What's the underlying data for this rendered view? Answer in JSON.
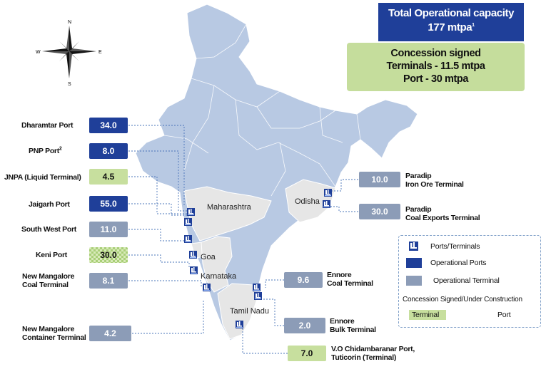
{
  "compass": {
    "n": "N",
    "s": "S",
    "e": "E",
    "w": "W"
  },
  "total_capacity": {
    "line1": "Total Operational capacity",
    "line2": "177 mtpa",
    "superscript": "1"
  },
  "concession": {
    "line1": "Concession signed",
    "line2": "Terminals - 11.5 mtpa",
    "line3": "Port - 30 mtpa"
  },
  "states": {
    "maharashtra": "Maharashtra",
    "odisha": "Odisha",
    "goa": "Goa",
    "karnataka": "Karnataka",
    "tamil_nadu": "Tamil Nadu"
  },
  "ports": {
    "dharamtar": {
      "name": "Dharamtar Port",
      "value": "34.0",
      "category": "Operational Ports"
    },
    "pnp": {
      "name": "PNP Port",
      "superscript": "2",
      "value": "8.0",
      "category": "Operational Ports"
    },
    "jnpa": {
      "name": "JNPA (Liquid Terminal)",
      "value": "4.5",
      "category": "Terminal"
    },
    "jaigarh": {
      "name": "Jaigarh Port",
      "value": "55.0",
      "category": "Operational Ports"
    },
    "south_west": {
      "name": "South West Port",
      "value": "11.0",
      "category": "Operational Terminal"
    },
    "keni": {
      "name": "Keni Port",
      "value": "30.0",
      "category": "Port"
    },
    "nm_coal": {
      "name_line1": "New Mangalore",
      "name_line2": "Coal Terminal",
      "value": "8.1",
      "category": "Operational Terminal"
    },
    "nm_container": {
      "name_line1": "New Mangalore",
      "name_line2": "Container Terminal",
      "value": "4.2",
      "category": "Operational Terminal"
    },
    "paradip_iron": {
      "name_line1": "Paradip",
      "name_line2": "Iron Ore Terminal",
      "value": "10.0",
      "category": "Operational Terminal"
    },
    "paradip_coal": {
      "name_line1": "Paradip",
      "name_line2": "Coal Exports Terminal",
      "value": "30.0",
      "category": "Operational Terminal"
    },
    "ennore_coal": {
      "name_line1": "Ennore",
      "name_line2": "Coal Terminal",
      "value": "9.6",
      "category": "Operational Terminal"
    },
    "ennore_bulk": {
      "name_line1": "Ennore",
      "name_line2": "Bulk Terminal",
      "value": "2.0",
      "category": "Operational Terminal"
    },
    "vo_chidambaranar": {
      "name_line1": "V.O Chidambaranar Port,",
      "name_line2": "Tuticorin (Terminal)",
      "value": "7.0",
      "category": "Terminal"
    }
  },
  "legend": {
    "ports_terminals": "Ports/Terminals",
    "operational_ports": "Operational Ports",
    "operational_terminal": "Operational Terminal",
    "concession_heading": "Concession Signed/Under Construction",
    "terminal": "Terminal",
    "port": "Port"
  },
  "colors": {
    "operational_port": "#1f3f99",
    "operational_terminal": "#8c9cb7",
    "concession_terminal": "#c7df9e",
    "concession_port_pattern": "#a9cf78",
    "map_fill": "#b8c9e3",
    "highlight_state": "#e6e6e6",
    "connector": "#4a74b8"
  },
  "icons": {
    "port_marker": "port-crane-icon",
    "compass": "compass-rose-icon"
  }
}
